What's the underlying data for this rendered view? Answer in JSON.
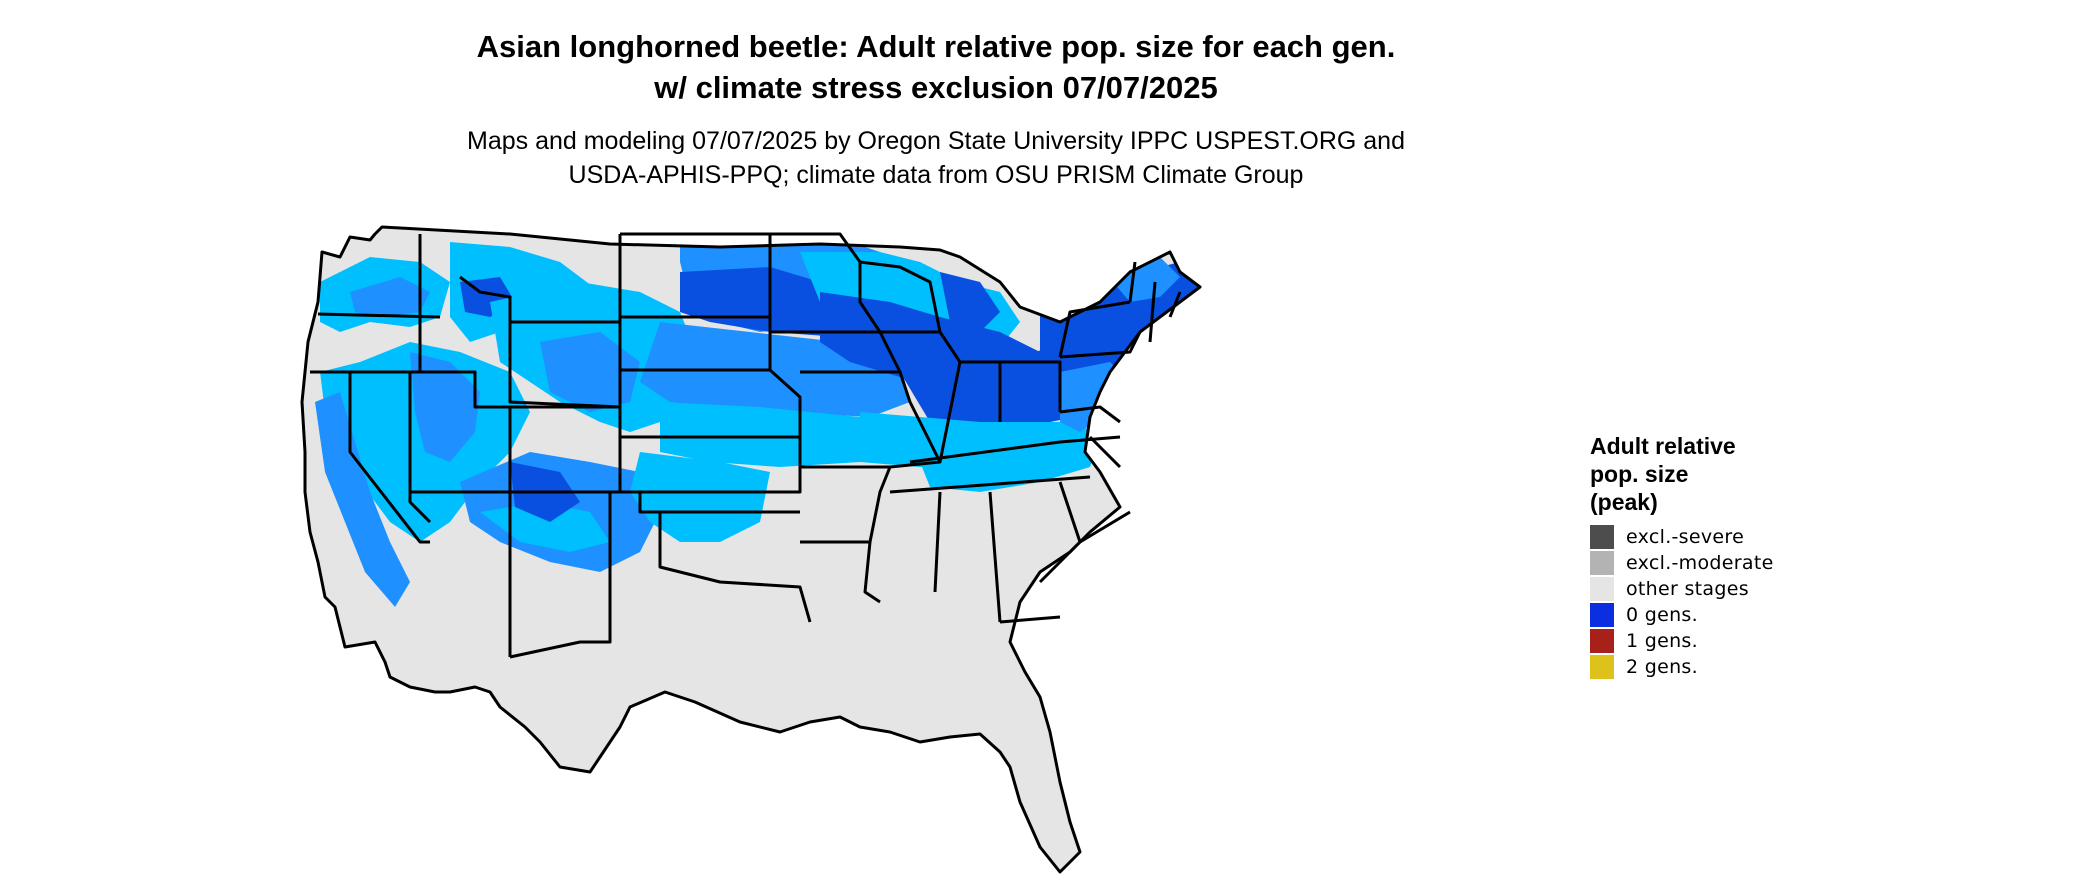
{
  "title": {
    "line1": "Asian longhorned beetle: Adult relative pop. size for each gen.",
    "line2": "w/ climate stress exclusion 07/07/2025"
  },
  "subtitle": {
    "line1": "Maps and modeling 07/07/2025 by Oregon State University IPPC USPEST.ORG and",
    "line2": "USDA-APHIS-PPQ; climate data from OSU PRISM Climate Group"
  },
  "legend": {
    "title_line1": "Adult relative",
    "title_line2": "pop. size",
    "title_line3": "(peak)",
    "items": [
      {
        "label": "excl.-severe",
        "color": "#4d4d4d"
      },
      {
        "label": "excl.-moderate",
        "color": "#b3b3b3"
      },
      {
        "label": "other stages",
        "color": "#e5e5e5"
      },
      {
        "label": "0 gens.",
        "color": "#0a2ee0"
      },
      {
        "label": "1 gens.",
        "color": "#a8201a"
      },
      {
        "label": "2 gens.",
        "color": "#dcc21a"
      }
    ]
  },
  "map_colors": {
    "background_gray": "#e5e5e5",
    "light_blue": "#00bfff",
    "mid_blue": "#1e90ff",
    "dark_blue": "#0a50e0",
    "deep_blue": "#0a2ee0",
    "border": "#000000"
  }
}
